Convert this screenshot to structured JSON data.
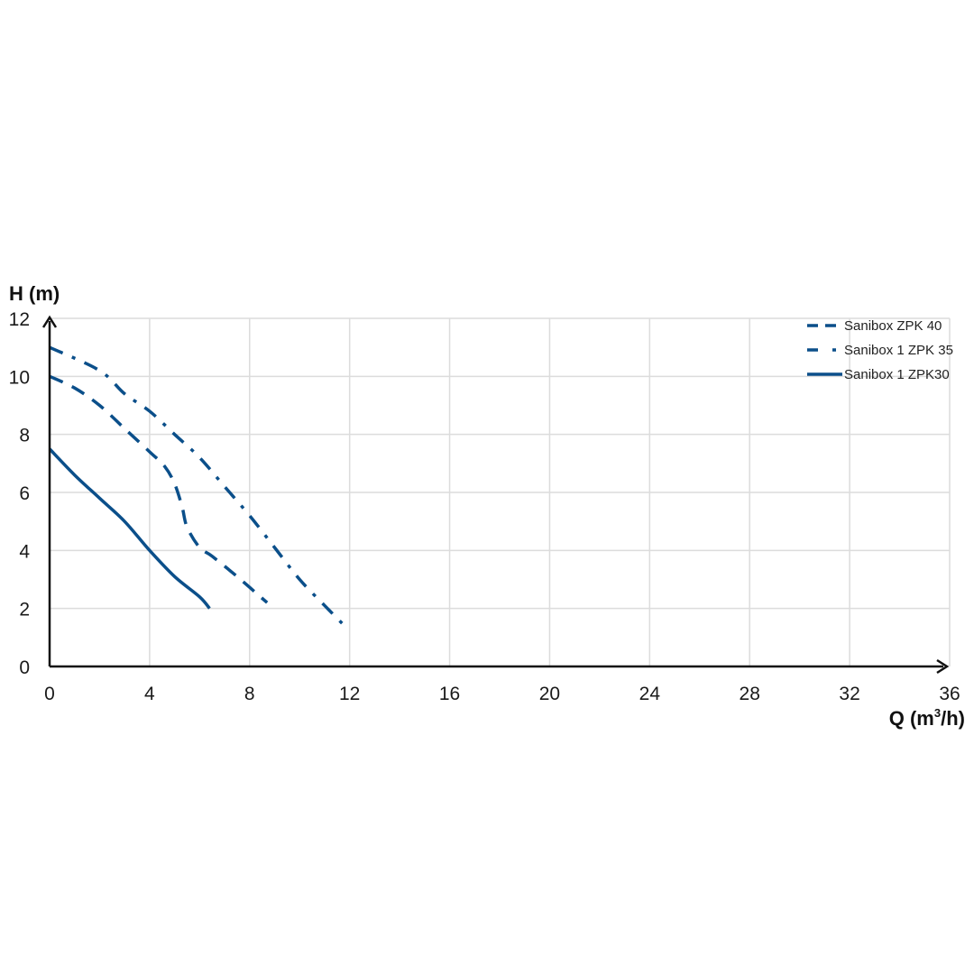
{
  "chart_data": {
    "type": "line",
    "ylabel": "H (m)",
    "xlabel_prefix": "Q (m",
    "xlabel_sup": "3",
    "xlabel_suffix": "/h)",
    "xlim": [
      0,
      36
    ],
    "ylim": [
      0,
      12
    ],
    "xticks": [
      "0",
      "4",
      "8",
      "12",
      "16",
      "20",
      "24",
      "28",
      "32",
      "36"
    ],
    "yticks": [
      "0",
      "2",
      "4",
      "6",
      "8",
      "10",
      "12"
    ],
    "grid": true,
    "legend_position": "top-right",
    "line_color": "#0b4f8a",
    "series": [
      {
        "name": "Sanibox ZPK 40",
        "style": "dashed",
        "x": [
          0,
          1,
          2,
          3,
          4,
          4.6,
          5,
          5.3,
          5.5,
          6,
          6.5,
          7.5,
          8.7
        ],
        "y": [
          10,
          9.6,
          9.0,
          8.2,
          7.4,
          6.9,
          6.3,
          5.5,
          4.8,
          4.1,
          3.8,
          3.1,
          2.2
        ]
      },
      {
        "name": "Sanibox 1 ZPK 35",
        "style": "dashdot",
        "x": [
          0,
          2,
          3,
          4,
          5,
          6,
          7,
          8,
          9,
          10,
          11,
          11.8
        ],
        "y": [
          11,
          10.2,
          9.4,
          8.8,
          8.0,
          7.2,
          6.2,
          5.2,
          4.1,
          3.0,
          2.1,
          1.4
        ]
      },
      {
        "name": "Sanibox 1 ZPK30",
        "style": "solid",
        "x": [
          0,
          1,
          2,
          3,
          4,
          5,
          6,
          6.4
        ],
        "y": [
          7.5,
          6.6,
          5.8,
          5.0,
          4.0,
          3.1,
          2.4,
          2.0
        ]
      }
    ]
  }
}
